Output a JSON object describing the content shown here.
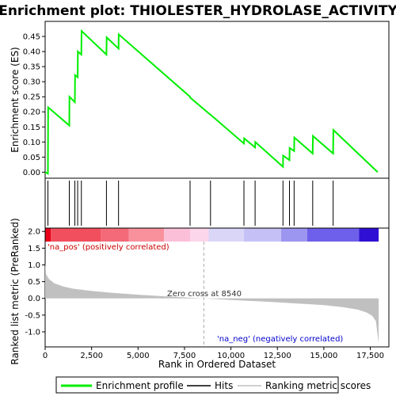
{
  "chart_data": {
    "type": "line",
    "title": "Enrichment plot: THIOLESTER_HYDROLASE_ACTIVITY",
    "top_panel": {
      "ylabel": "Enrichment score (ES)",
      "ylim": [
        -0.02,
        0.5
      ],
      "yticks": [
        "0.00",
        "0.05",
        "0.10",
        "0.15",
        "0.20",
        "0.25",
        "0.30",
        "0.35",
        "0.40",
        "0.45"
      ],
      "ytick_values": [
        0,
        0.05,
        0.1,
        0.15,
        0.2,
        0.25,
        0.3,
        0.35,
        0.4,
        0.45
      ],
      "series": [
        {
          "name": "Enrichment profile",
          "color": "#00ee00",
          "x": [
            0,
            150,
            160,
            1300,
            1310,
            1600,
            1610,
            1750,
            1760,
            1950,
            1960,
            3300,
            3310,
            3950,
            3960,
            7800,
            7810,
            8900,
            8910,
            10700,
            10710,
            11300,
            11310,
            12800,
            12810,
            13150,
            13160,
            13400,
            13410,
            14400,
            14410,
            15500,
            15510,
            17900
          ],
          "y": [
            0,
            -0.005,
            0.215,
            0.155,
            0.25,
            0.232,
            0.322,
            0.315,
            0.4,
            0.39,
            0.468,
            0.39,
            0.447,
            0.41,
            0.457,
            0.25,
            0.247,
            0.19,
            0.19,
            0.095,
            0.112,
            0.082,
            0.1,
            0.018,
            0.055,
            0.04,
            0.08,
            0.07,
            0.115,
            0.062,
            0.12,
            0.062,
            0.14,
            0.0
          ]
        }
      ]
    },
    "hits": {
      "name": "Hits",
      "positions": [
        150,
        1300,
        1600,
        1750,
        1950,
        3300,
        3950,
        7800,
        8900,
        10700,
        11300,
        12800,
        13150,
        13400,
        14400,
        15500
      ]
    },
    "bottom_panel": {
      "ylabel": "Ranked list metric (PreRanked)",
      "xlabel": "Rank in Ordered Dataset",
      "xlim": [
        0,
        18500
      ],
      "ylim": [
        -1.45,
        2.1
      ],
      "xticks": [
        "0",
        "2,500",
        "5,000",
        "7,500",
        "10,000",
        "12,500",
        "15,000",
        "17,500"
      ],
      "xtick_values": [
        0,
        2500,
        5000,
        7500,
        10000,
        12500,
        15000,
        17500
      ],
      "yticks": [
        "2.0",
        "1.5",
        "1.0",
        "0.5",
        "0.0",
        "-0.5",
        "-1.0"
      ],
      "ytick_values": [
        2.0,
        1.5,
        1.0,
        0.5,
        0.0,
        -0.5,
        -1.0
      ],
      "ranking_metric": {
        "name": "Ranking metric scores",
        "color": "#c0c0c0",
        "x": [
          0,
          50,
          200,
          500,
          1000,
          1500,
          2500,
          3500,
          5000,
          6500,
          8540,
          10000,
          12000,
          13500,
          15000,
          16000,
          16800,
          17300,
          17600,
          17800,
          17950
        ],
        "y": [
          1.05,
          0.72,
          0.58,
          0.45,
          0.35,
          0.29,
          0.22,
          0.17,
          0.11,
          0.06,
          0.0,
          -0.05,
          -0.1,
          -0.15,
          -0.2,
          -0.26,
          -0.33,
          -0.42,
          -0.52,
          -0.68,
          -1.35
        ]
      },
      "annotations": {
        "zero_cross": "Zero cross at 8540",
        "zero_cross_value": 8540,
        "pos_label": "'na_pos' (positively correlated)",
        "neg_label": "'na_neg' (negatively correlated)"
      }
    },
    "colorbar_segments": [
      {
        "start": 0,
        "end": 300,
        "color": "#e8001a"
      },
      {
        "start": 300,
        "end": 3000,
        "color": "#f24f5e"
      },
      {
        "start": 3000,
        "end": 4500,
        "color": "#f46a78"
      },
      {
        "start": 4500,
        "end": 6400,
        "color": "#f8919c"
      },
      {
        "start": 6400,
        "end": 7800,
        "color": "#fbbfd8"
      },
      {
        "start": 7800,
        "end": 8800,
        "color": "#fcd6ea"
      },
      {
        "start": 8800,
        "end": 10700,
        "color": "#dad6f8"
      },
      {
        "start": 10700,
        "end": 12700,
        "color": "#c5c1f6"
      },
      {
        "start": 12700,
        "end": 14100,
        "color": "#9d96f0"
      },
      {
        "start": 14100,
        "end": 16900,
        "color": "#6e60ea"
      },
      {
        "start": 16900,
        "end": 17950,
        "color": "#2f0fd4"
      }
    ],
    "legend": {
      "items": [
        {
          "label": "Enrichment profile",
          "color": "#00ee00"
        },
        {
          "label": "Hits",
          "color": "#000000"
        },
        {
          "label": "Ranking metric scores",
          "color": "#c0c0c0"
        }
      ]
    }
  }
}
